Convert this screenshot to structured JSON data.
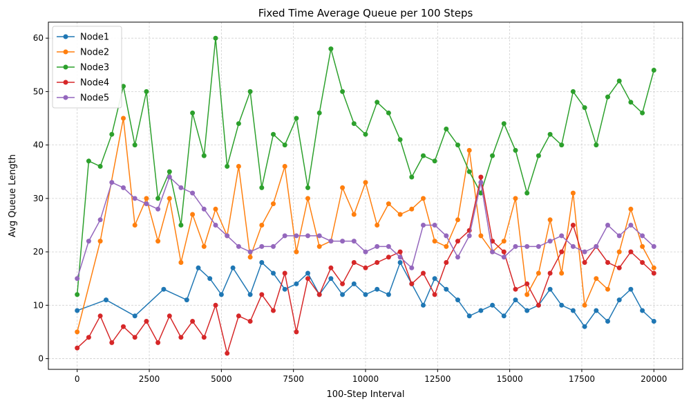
{
  "chart_data": {
    "type": "line",
    "title": "Fixed Time Average Queue per 100 Steps",
    "xlabel": "100-Step Interval",
    "ylabel": "Avg Queue Length",
    "xlim": [
      -1000,
      21000
    ],
    "ylim": [
      -2,
      63
    ],
    "xticks": [
      0,
      2500,
      5000,
      7500,
      10000,
      12500,
      15000,
      17500,
      20000
    ],
    "yticks": [
      0,
      10,
      20,
      30,
      40,
      50,
      60
    ],
    "grid": true,
    "legend_position": "top-left",
    "series": [
      {
        "name": "Node1",
        "color": "#1f77b4",
        "x": [
          0,
          1000,
          2000,
          3000,
          3800,
          4200,
          4600,
          5000,
          5400,
          6000,
          6400,
          6800,
          7200,
          7600,
          8000,
          8400,
          8800,
          9200,
          9600,
          10000,
          10400,
          10800,
          11200,
          11600,
          12000,
          12400,
          12800,
          13200,
          13600,
          14000,
          14400,
          14800,
          15200,
          15600,
          16000,
          16400,
          16800,
          17200,
          17600,
          18000,
          18400,
          18800,
          19200,
          19600,
          20000
        ],
        "values": [
          9,
          11,
          8,
          13,
          11,
          17,
          15,
          12,
          17,
          12,
          18,
          16,
          13,
          14,
          16,
          12,
          15,
          12,
          14,
          12,
          13,
          12,
          18,
          14,
          10,
          15,
          13,
          11,
          8,
          9,
          10,
          8,
          11,
          9,
          10,
          13,
          10,
          9,
          6,
          9,
          7,
          11,
          13,
          9,
          7
        ]
      },
      {
        "name": "Node2",
        "color": "#ff7f0e",
        "x": [
          0,
          800,
          1600,
          2000,
          2400,
          2800,
          3200,
          3600,
          4000,
          4400,
          4800,
          5200,
          5600,
          6000,
          6400,
          6800,
          7200,
          7600,
          8000,
          8400,
          8800,
          9200,
          9600,
          10000,
          10400,
          10800,
          11200,
          11600,
          12000,
          12400,
          12800,
          13200,
          13600,
          14000,
          14400,
          14800,
          15200,
          15600,
          16000,
          16400,
          16800,
          17200,
          17600,
          18000,
          18400,
          18800,
          19200,
          19600,
          20000
        ],
        "values": [
          5,
          22,
          45,
          25,
          30,
          22,
          30,
          18,
          27,
          21,
          28,
          23,
          36,
          19,
          25,
          29,
          36,
          20,
          30,
          21,
          22,
          32,
          27,
          33,
          25,
          29,
          27,
          28,
          30,
          22,
          21,
          26,
          39,
          23,
          20,
          22,
          30,
          12,
          16,
          26,
          16,
          31,
          10,
          15,
          13,
          20,
          28,
          21,
          17
        ]
      },
      {
        "name": "Node3",
        "color": "#2ca02c",
        "x": [
          0,
          400,
          800,
          1200,
          1600,
          2000,
          2400,
          2800,
          3200,
          3600,
          4000,
          4400,
          4800,
          5200,
          5600,
          6000,
          6400,
          6800,
          7200,
          7600,
          8000,
          8400,
          8800,
          9200,
          9600,
          10000,
          10400,
          10800,
          11200,
          11600,
          12000,
          12400,
          12800,
          13200,
          13600,
          14000,
          14400,
          14800,
          15200,
          15600,
          16000,
          16400,
          16800,
          17200,
          17600,
          18000,
          18400,
          18800,
          19200,
          19600,
          20000
        ],
        "values": [
          12,
          37,
          36,
          42,
          51,
          40,
          50,
          30,
          35,
          25,
          46,
          38,
          60,
          36,
          44,
          50,
          32,
          42,
          40,
          45,
          32,
          46,
          58,
          50,
          44,
          42,
          48,
          46,
          41,
          34,
          38,
          37,
          43,
          40,
          35,
          31,
          38,
          44,
          39,
          31,
          38,
          42,
          40,
          50,
          47,
          40,
          49,
          52,
          48,
          46,
          54
        ]
      },
      {
        "name": "Node4",
        "color": "#d62728",
        "x": [
          0,
          400,
          800,
          1200,
          1600,
          2000,
          2400,
          2800,
          3200,
          3600,
          4000,
          4400,
          4800,
          5200,
          5600,
          6000,
          6400,
          6800,
          7200,
          7600,
          8000,
          8400,
          8800,
          9200,
          9600,
          10000,
          10400,
          10800,
          11200,
          11600,
          12000,
          12400,
          12800,
          13200,
          13600,
          14000,
          14400,
          14800,
          15200,
          15600,
          16000,
          16400,
          16800,
          17200,
          17600,
          18000,
          18400,
          18800,
          19200,
          19600,
          20000
        ],
        "values": [
          2,
          4,
          8,
          3,
          6,
          4,
          7,
          3,
          8,
          4,
          7,
          4,
          10,
          1,
          8,
          7,
          12,
          9,
          16,
          5,
          15,
          12,
          17,
          14,
          18,
          17,
          18,
          19,
          20,
          14,
          16,
          12,
          18,
          22,
          24,
          34,
          22,
          20,
          13,
          14,
          10,
          16,
          20,
          25,
          18,
          21,
          18,
          17,
          20,
          18,
          16
        ]
      },
      {
        "name": "Node5",
        "color": "#9467bd",
        "x": [
          0,
          400,
          800,
          1200,
          1600,
          2000,
          2400,
          2800,
          3200,
          3600,
          4000,
          4400,
          4800,
          5200,
          5600,
          6000,
          6400,
          6800,
          7200,
          7600,
          8000,
          8400,
          8800,
          9200,
          9600,
          10000,
          10400,
          10800,
          11200,
          11600,
          12000,
          12400,
          12800,
          13200,
          13600,
          14000,
          14400,
          14800,
          15200,
          15600,
          16000,
          16400,
          16800,
          17200,
          17600,
          18000,
          18400,
          18800,
          19200,
          19600,
          20000
        ],
        "values": [
          15,
          22,
          26,
          33,
          32,
          30,
          29,
          28,
          34,
          32,
          31,
          28,
          25,
          23,
          21,
          20,
          21,
          21,
          23,
          23,
          23,
          23,
          22,
          22,
          22,
          20,
          21,
          21,
          19,
          17,
          25,
          25,
          23,
          19,
          23,
          33,
          20,
          19,
          21,
          21,
          21,
          22,
          23,
          21,
          20,
          21,
          25,
          23,
          25,
          23,
          21
        ]
      }
    ]
  }
}
